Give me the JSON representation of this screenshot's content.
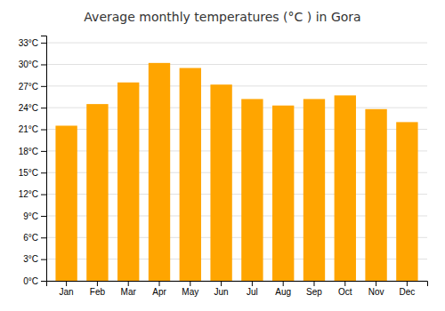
{
  "chart_data": {
    "type": "bar",
    "title": "Average monthly temperatures (°C ) in Gora",
    "categories": [
      "Jan",
      "Feb",
      "Mar",
      "Apr",
      "May",
      "Jun",
      "Jul",
      "Aug",
      "Sep",
      "Oct",
      "Nov",
      "Dec"
    ],
    "values": [
      21.5,
      24.5,
      27.5,
      30.2,
      29.5,
      27.2,
      25.2,
      24.3,
      25.2,
      25.7,
      23.8,
      22.0
    ],
    "color": "#FFA500",
    "ylim": [
      0,
      34
    ],
    "yticks": [
      {
        "value": 0,
        "label": "0°C"
      },
      {
        "value": 3,
        "label": "3°C"
      },
      {
        "value": 6,
        "label": "6°C"
      },
      {
        "value": 9,
        "label": "9°C"
      },
      {
        "value": 12,
        "label": "12°C"
      },
      {
        "value": 15,
        "label": "15°C"
      },
      {
        "value": 18,
        "label": "18°C"
      },
      {
        "value": 21,
        "label": "21°C"
      },
      {
        "value": 24,
        "label": "24°C"
      },
      {
        "value": 27,
        "label": "27°C"
      },
      {
        "value": 30,
        "label": "30°C"
      },
      {
        "value": 33,
        "label": "33°C"
      }
    ],
    "grid": true
  }
}
